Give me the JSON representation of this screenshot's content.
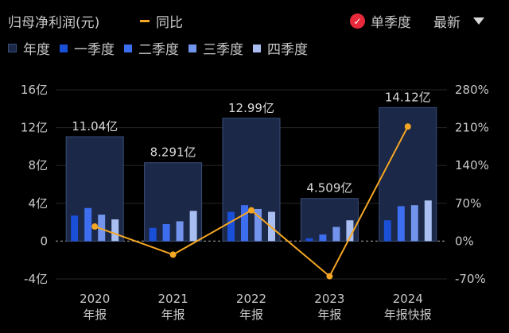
{
  "header": {
    "title": "归母净利润(元)",
    "yoy_label": "同比",
    "single_quarter_label": "单季度",
    "latest_label": "最新"
  },
  "legend": [
    {
      "label": "年度",
      "color": "#1b2847"
    },
    {
      "label": "一季度",
      "color": "#1a4fd8"
    },
    {
      "label": "二季度",
      "color": "#3d6ef0"
    },
    {
      "label": "三季度",
      "color": "#7294ec"
    },
    {
      "label": "四季度",
      "color": "#a9bff2"
    }
  ],
  "colors": {
    "year_bar": "#1b2847",
    "year_bar_border": "#3b4e7a",
    "q1": "#1a4fd8",
    "q2": "#3d6ef0",
    "q3": "#7294ec",
    "q4": "#a9bff2",
    "yoy_line": "#f5a623",
    "zero_line": "#8a8a8a",
    "grid": "#262626"
  },
  "chart_data": {
    "type": "bar",
    "categories": [
      "2020",
      "2021",
      "2022",
      "2023",
      "2024"
    ],
    "category_sublabels": [
      "年报",
      "年报",
      "年报",
      "年报",
      "年报快报"
    ],
    "annual_values": [
      11.04,
      8.291,
      12.99,
      4.509,
      14.12
    ],
    "annual_labels": [
      "11.04亿",
      "8.291亿",
      "12.99亿",
      "4.509亿",
      "14.12亿"
    ],
    "series": [
      {
        "name": "一季度",
        "values": [
          2.7,
          1.4,
          3.1,
          0.3,
          2.2
        ]
      },
      {
        "name": "二季度",
        "values": [
          3.5,
          1.8,
          3.8,
          0.7,
          3.7
        ]
      },
      {
        "name": "三季度",
        "values": [
          2.8,
          2.1,
          3.4,
          1.5,
          3.8
        ]
      },
      {
        "name": "四季度",
        "values": [
          2.3,
          3.2,
          3.1,
          2.2,
          4.3
        ]
      }
    ],
    "yoy": {
      "name": "同比",
      "values": [
        27,
        -25,
        57,
        -65,
        212
      ]
    },
    "y_left": {
      "min": -4,
      "max": 16,
      "ticks": [
        -4,
        0,
        4,
        8,
        12,
        16
      ],
      "tick_labels": [
        "-4亿",
        "0",
        "4亿",
        "8亿",
        "12亿",
        "16亿"
      ]
    },
    "y_right": {
      "min": -70,
      "max": 280,
      "ticks": [
        -70,
        0,
        70,
        140,
        210,
        280
      ],
      "tick_labels": [
        "-70%",
        "0%",
        "70%",
        "140%",
        "210%",
        "280%"
      ]
    },
    "grid": true,
    "legend_position": "top-left"
  }
}
